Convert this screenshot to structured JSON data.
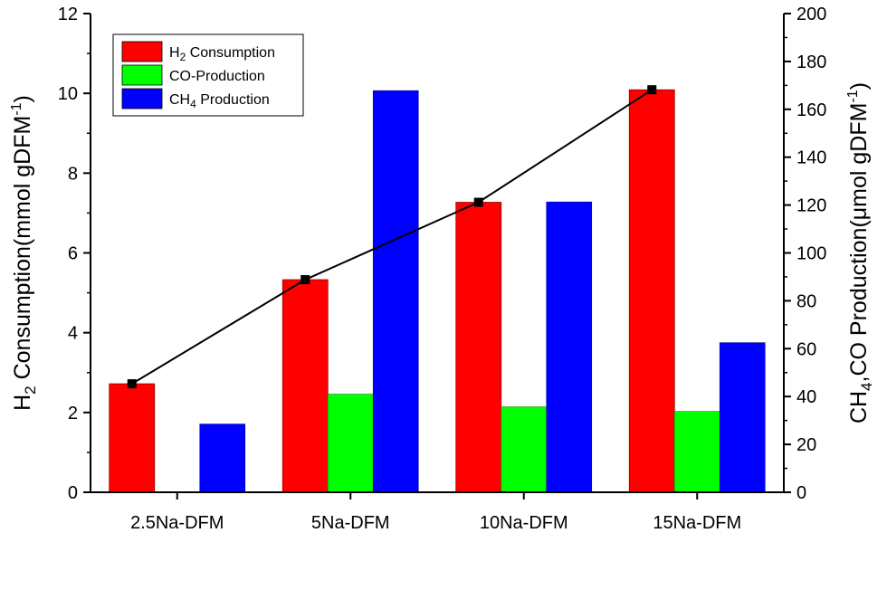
{
  "chart_data": {
    "type": "bar",
    "categories": [
      "2.5Na-DFM",
      "5Na-DFM",
      "10Na-DFM",
      "15Na-DFM"
    ],
    "series": [
      {
        "name": "H2 Consumption",
        "label_main": "H",
        "label_sub": "2",
        "label_rest": " Consumption",
        "axis": "left",
        "color": "#ff0000",
        "values": [
          2.72,
          5.33,
          7.27,
          10.09
        ]
      },
      {
        "name": "CO-Production",
        "label_main": "CO-Production",
        "label_sub": "",
        "label_rest": "",
        "axis": "right",
        "color": "#00ff00",
        "values": [
          0,
          41,
          35.7,
          33.8
        ]
      },
      {
        "name": "CH4 Production",
        "label_main": "CH",
        "label_sub": "4",
        "label_rest": " Production",
        "axis": "right",
        "color": "#0000ff",
        "values": [
          28.5,
          167.8,
          121.3,
          62.5
        ]
      }
    ],
    "line": {
      "axis": "left",
      "color": "#000000",
      "values": [
        2.72,
        5.33,
        7.27,
        10.09
      ]
    },
    "y_left": {
      "range": [
        0,
        12
      ],
      "ticks": [
        0,
        2,
        4,
        6,
        8,
        10,
        12
      ],
      "label_a": "H",
      "label_sub": "2",
      "label_b": " Consumption(mmol gDFM",
      "label_sup": "-1",
      "label_c": ")"
    },
    "y_right": {
      "range": [
        0,
        200
      ],
      "ticks": [
        0,
        20,
        40,
        60,
        80,
        100,
        120,
        140,
        160,
        180,
        200
      ],
      "label_a": "CH",
      "label_sub": "4",
      "label_b": ",CO Production(μmol gDFM",
      "label_sup": "-1",
      "label_c": ")"
    },
    "legend_position": "top-left"
  }
}
